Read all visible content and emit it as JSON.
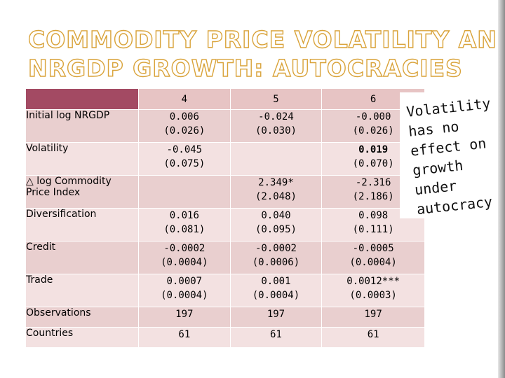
{
  "title": {
    "line1": "COMMODITY PRICE VOLATILITY AND",
    "line2": "NRGDP GROWTH: AUTOCRACIES"
  },
  "table": {
    "columns": [
      "4",
      "5",
      "6"
    ],
    "rows": [
      {
        "label": "Initial log NRGDP",
        "cells": [
          [
            "0.006",
            "(0.026)"
          ],
          [
            "-0.024",
            "(0.030)"
          ],
          [
            "-0.000",
            "(0.026)"
          ]
        ]
      },
      {
        "label": "Volatility",
        "cells": [
          [
            "-0.045",
            "(0.075)"
          ],
          [
            "",
            ""
          ],
          [
            "0.019",
            "(0.070)"
          ]
        ]
      },
      {
        "label_symbol": "△",
        "label": "log Commodity",
        "label_line2": "Price Index",
        "cells": [
          [
            "",
            ""
          ],
          [
            "2.349*",
            "(2.048)"
          ],
          [
            "-2.316",
            "(2.186)"
          ]
        ]
      },
      {
        "label": "Diversification",
        "cells": [
          [
            "0.016",
            "(0.081)"
          ],
          [
            "0.040",
            "(0.095)"
          ],
          [
            "0.098",
            "(0.111)"
          ]
        ]
      },
      {
        "label": "Credit",
        "cells": [
          [
            "-0.0002",
            "(0.0004)"
          ],
          [
            "-0.0002",
            "(0.0006)"
          ],
          [
            "-0.0005",
            "(0.0004)"
          ]
        ]
      },
      {
        "label": "Trade",
        "cells": [
          [
            "0.0007",
            "(0.0004)"
          ],
          [
            "0.001",
            "(0.0004)"
          ],
          [
            "0.0012***",
            "(0.0003)"
          ]
        ]
      },
      {
        "label": "Observations",
        "cells": [
          [
            "197"
          ],
          [
            "197"
          ],
          [
            "197"
          ]
        ]
      },
      {
        "label": "Countries",
        "cells": [
          [
            "61"
          ],
          [
            "61"
          ],
          [
            "61"
          ]
        ]
      }
    ]
  },
  "note": {
    "lines": [
      "Volatility",
      "has no",
      "effect on",
      "growth",
      "under",
      "autocracy"
    ]
  },
  "colors": {
    "title_outline": "#d9a33a",
    "header_accent": "#a34a63",
    "cell_light": "#f3e1e1",
    "cell_dark": "#e9cfcf"
  }
}
